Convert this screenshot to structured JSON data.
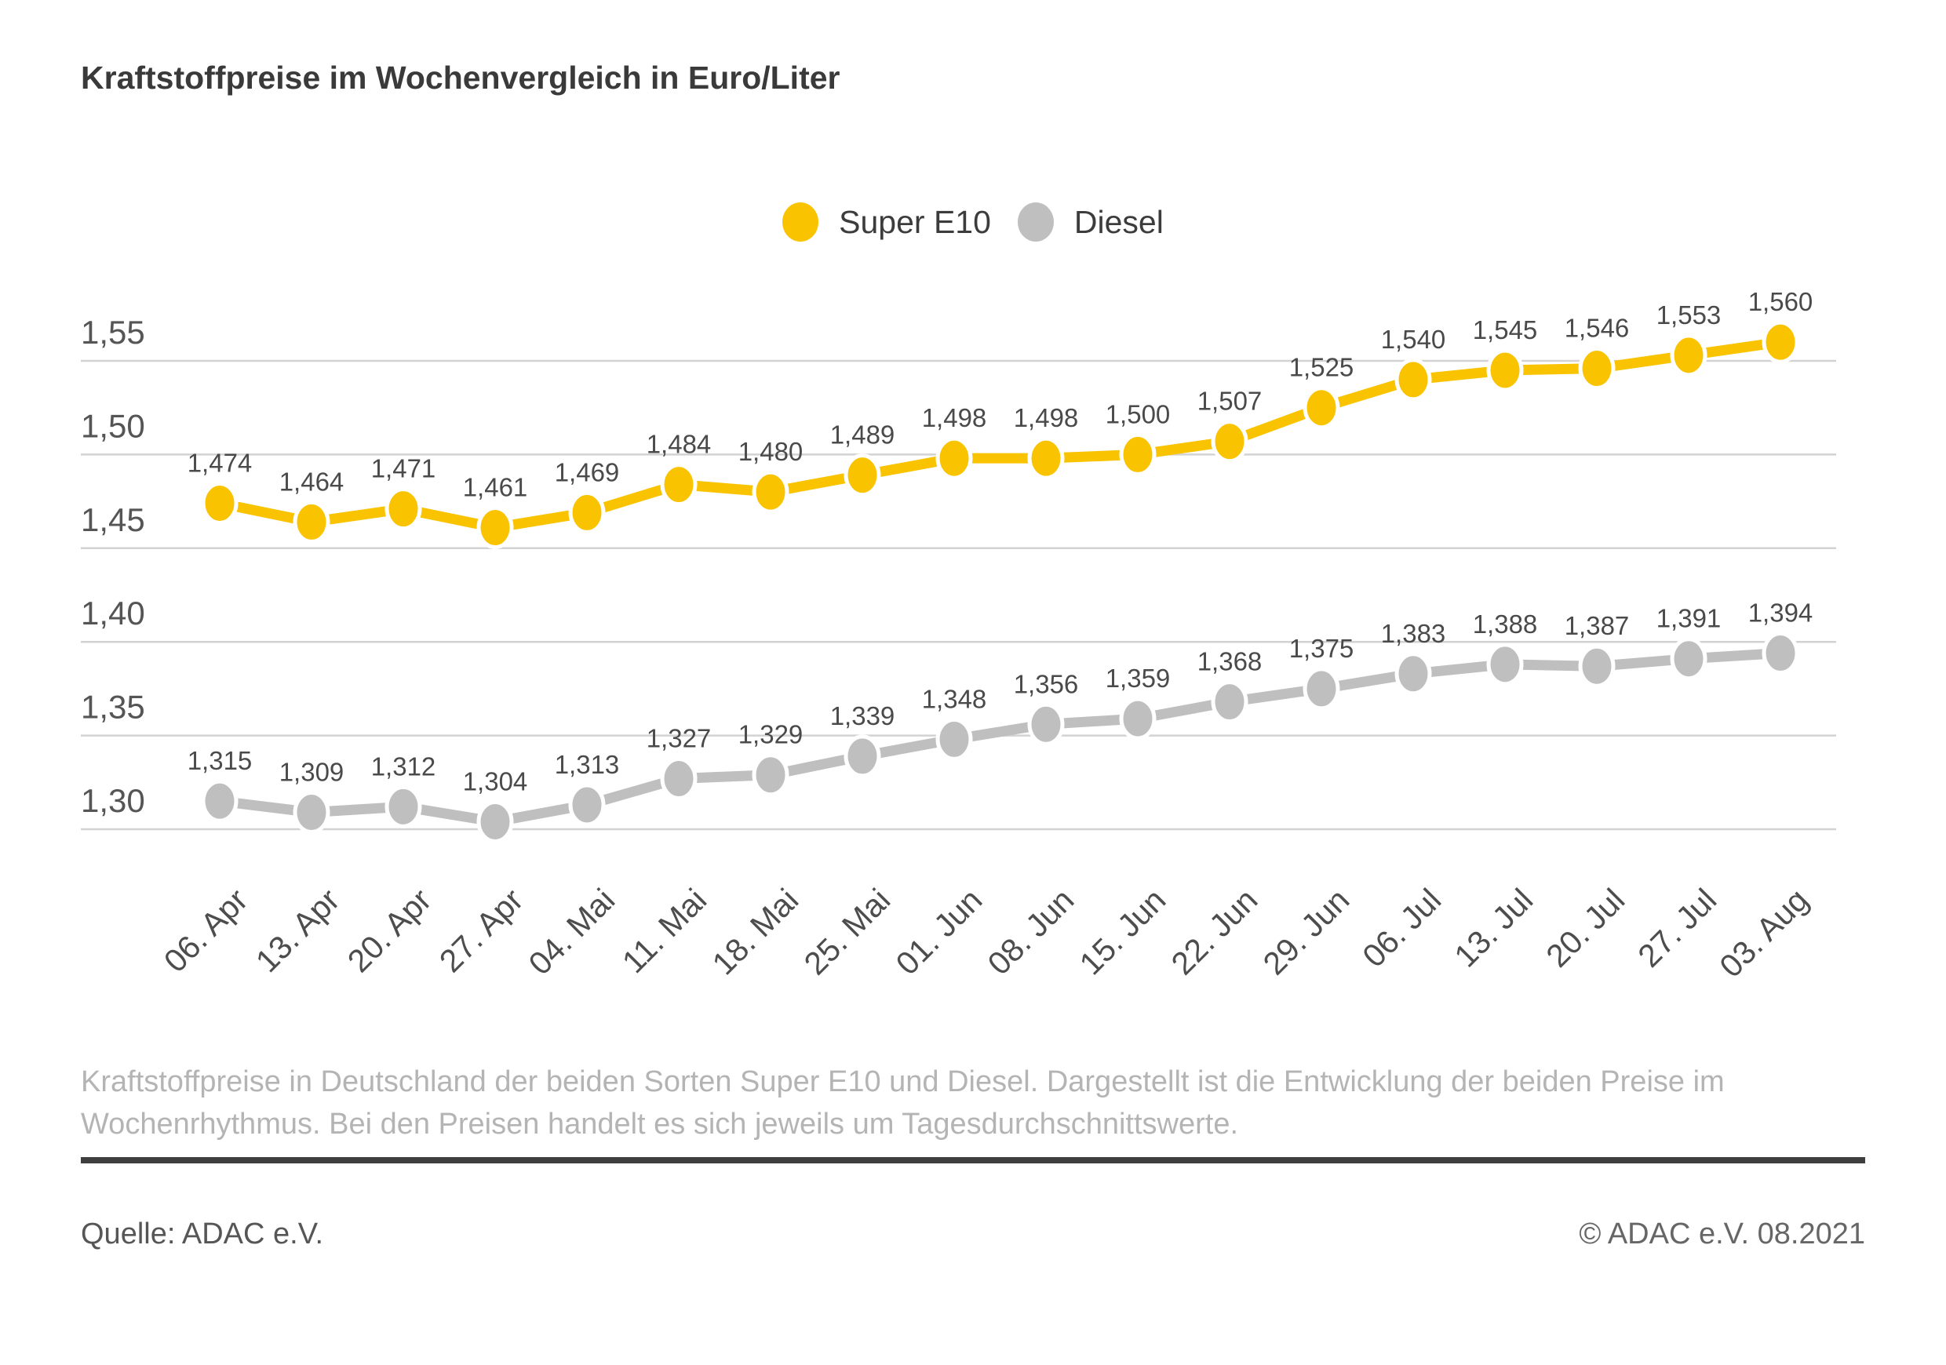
{
  "title": "Kraftstoffpreise im Wochenvergleich in Euro/Liter",
  "legend": [
    {
      "label": "Super E10",
      "color": "#f9c300"
    },
    {
      "label": "Diesel",
      "color": "#bfbfbf"
    }
  ],
  "chart_data": {
    "type": "line",
    "categories": [
      "06. Apr",
      "13. Apr",
      "20. Apr",
      "27. Apr",
      "04. Mai",
      "11. Mai",
      "18. Mai",
      "25. Mai",
      "01. Jun",
      "08. Jun",
      "15. Jun",
      "22. Jun",
      "29. Jun",
      "06. Jul",
      "13. Jul",
      "20. Jul",
      "27. Jul",
      "03. Aug"
    ],
    "series": [
      {
        "name": "Super E10",
        "color": "#f9c300",
        "values": [
          1.474,
          1.464,
          1.471,
          1.461,
          1.469,
          1.484,
          1.48,
          1.489,
          1.498,
          1.498,
          1.5,
          1.507,
          1.525,
          1.54,
          1.545,
          1.546,
          1.553,
          1.56
        ]
      },
      {
        "name": "Diesel",
        "color": "#bfbfbf",
        "values": [
          1.315,
          1.309,
          1.312,
          1.304,
          1.313,
          1.327,
          1.329,
          1.339,
          1.348,
          1.356,
          1.359,
          1.368,
          1.375,
          1.383,
          1.388,
          1.387,
          1.391,
          1.394
        ]
      }
    ],
    "yticks": [
      1.55,
      1.5,
      1.45,
      1.4,
      1.35,
      1.3
    ],
    "ylim": [
      1.28,
      1.57
    ],
    "grid": true,
    "gridline_color": "#d2d2d2",
    "legend_position": "top-center",
    "value_labels": true,
    "decimal_separator": ",",
    "title": "Kraftstoffpreise im Wochenvergleich in Euro/Liter",
    "xlabel": "",
    "ylabel": "Euro/Liter"
  },
  "footer": {
    "description_line1": "Kraftstoffpreise in Deutschland der beiden Sorten Super E10 und Diesel. Dargestellt ist die Entwicklung der beiden Preise im",
    "description_line2": "Wochenrhythmus. Bei den Preisen handelt es sich jeweils um Tagesdurchschnittswerte.",
    "source": "Quelle: ADAC e.V.",
    "copyright": "© ADAC e.V. 08.2021"
  },
  "colors": {
    "title_text": "#3a3a3a",
    "tick_text": "#555555",
    "value_label_text": "#4a4a4a",
    "x_label_text": "#4d4d4d",
    "footer_text": "#b4b4b4",
    "rule": "#3e3e3e",
    "background": "#ffffff"
  }
}
